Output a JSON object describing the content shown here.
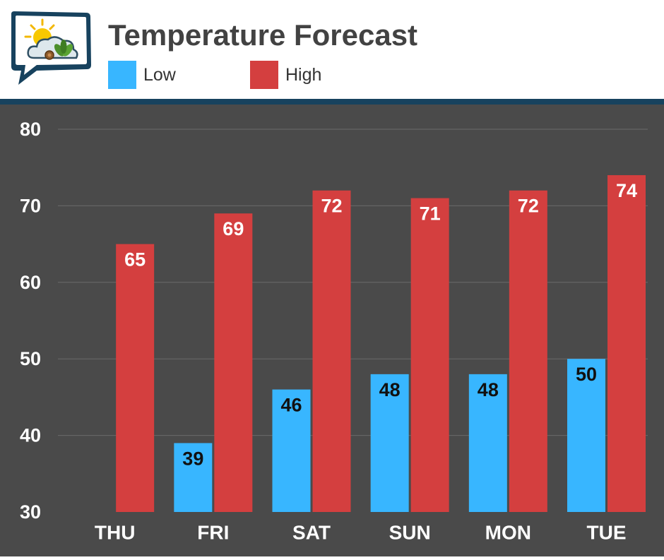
{
  "title": "Temperature Forecast",
  "legend": {
    "low_label": "Low",
    "high_label": "High"
  },
  "colors": {
    "low": "#38b6ff",
    "high": "#d43f3f",
    "background": "#4a4a4a",
    "header_stripe": "#17425e"
  },
  "chart_data": {
    "type": "bar",
    "title": "Temperature Forecast",
    "xlabel": "",
    "ylabel": "",
    "categories": [
      "THU",
      "FRI",
      "SAT",
      "SUN",
      "MON",
      "TUE"
    ],
    "series": [
      {
        "name": "Low",
        "values": [
          null,
          39,
          46,
          48,
          48,
          50
        ]
      },
      {
        "name": "High",
        "values": [
          65,
          69,
          72,
          71,
          72,
          74
        ]
      }
    ],
    "ylim": [
      30,
      80
    ],
    "yticks": [
      30,
      40,
      50,
      60,
      70,
      80
    ],
    "grid": true,
    "legend_position": "top-left"
  }
}
